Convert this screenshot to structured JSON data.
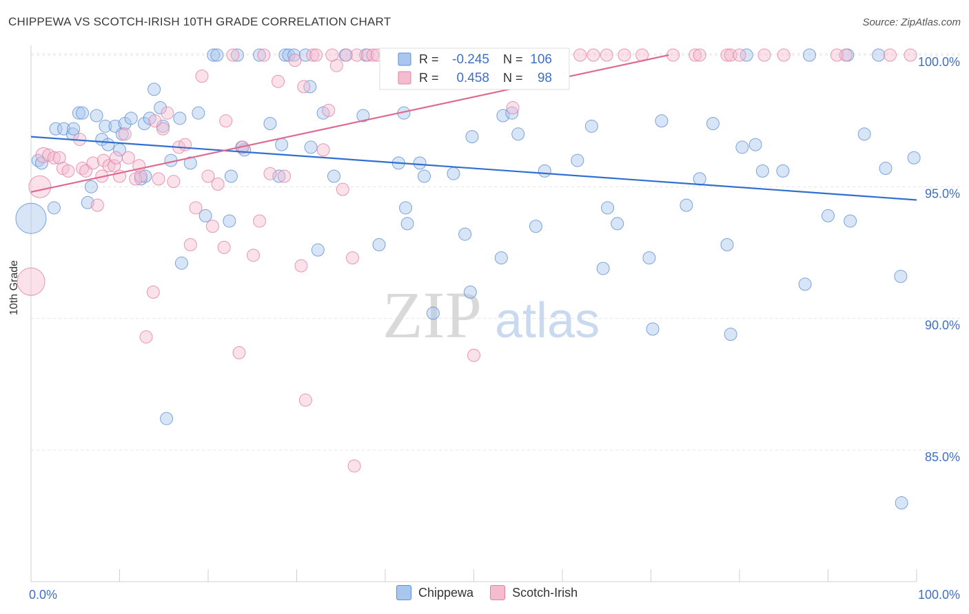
{
  "title": "CHIPPEWA VS SCOTCH-IRISH 10TH GRADE CORRELATION CHART",
  "source": "Source: ZipAtlas.com",
  "watermark": {
    "zip": "ZIP",
    "atlas": "atlas"
  },
  "colors": {
    "blue": "#5b8fd6",
    "blue_line": "#2f6fcf",
    "blue_fill": "#a9c6ee",
    "pink": "#e27fa3",
    "pink_line": "#e0698f",
    "pink_fill": "#f5bcd0",
    "tick_text": "#3f6fc3"
  },
  "stats_box": {
    "rows": [
      {
        "r_label": "R =",
        "r": "-0.245",
        "n_label": "N =",
        "n": "106"
      },
      {
        "r_label": "R =",
        "r": "0.458",
        "n_label": "N =",
        "n": "98"
      }
    ]
  },
  "legend": {
    "items": [
      "Chippewa",
      "Scotch-Irish"
    ]
  },
  "chart_data": {
    "type": "scatter",
    "title": "CHIPPEWA VS SCOTCH-IRISH 10TH GRADE CORRELATION CHART",
    "xlabel": "",
    "ylabel": "10th Grade",
    "xlim": [
      0,
      100
    ],
    "ylim": [
      80.5,
      101
    ],
    "x_tick_labels": [
      "0.0%",
      "100.0%"
    ],
    "y_tick_labels": [
      "85.0%",
      "90.0%",
      "95.0%",
      "100.0%"
    ],
    "y_ticks": [
      85,
      90,
      95,
      100
    ],
    "series": [
      {
        "name": "Chippewa",
        "color": "#5b8fd6",
        "trend": {
          "x": [
            0,
            100
          ],
          "y": [
            96.9,
            94.5
          ]
        },
        "points": [
          [
            0.0,
            93.8,
            22
          ],
          [
            0.8,
            96.0,
            9
          ],
          [
            1.2,
            95.9,
            9
          ],
          [
            2.6,
            94.2,
            9
          ],
          [
            2.8,
            97.2,
            9
          ],
          [
            3.7,
            97.2,
            9
          ],
          [
            4.7,
            97.0,
            9
          ],
          [
            4.8,
            97.2,
            9
          ],
          [
            5.4,
            97.8,
            9
          ],
          [
            5.8,
            97.8,
            9
          ],
          [
            6.4,
            94.4,
            9
          ],
          [
            6.8,
            95.0,
            9
          ],
          [
            7.4,
            97.7,
            9
          ],
          [
            8.0,
            96.8,
            9
          ],
          [
            8.4,
            97.3,
            9
          ],
          [
            8.7,
            96.6,
            9
          ],
          [
            9.5,
            97.3,
            9
          ],
          [
            10.0,
            96.4,
            9
          ],
          [
            10.3,
            97.0,
            9
          ],
          [
            10.6,
            97.4,
            9
          ],
          [
            11.3,
            97.6,
            9
          ],
          [
            12.4,
            95.3,
            9
          ],
          [
            12.8,
            97.4,
            9
          ],
          [
            12.9,
            95.4,
            9
          ],
          [
            13.4,
            97.6,
            9
          ],
          [
            13.9,
            98.7,
            9
          ],
          [
            14.6,
            98.0,
            9
          ],
          [
            14.9,
            97.3,
            9
          ],
          [
            15.3,
            86.2,
            9
          ],
          [
            15.8,
            96.0,
            9
          ],
          [
            16.8,
            97.6,
            9
          ],
          [
            17.0,
            92.1,
            9
          ],
          [
            18.0,
            95.9,
            9
          ],
          [
            18.9,
            97.8,
            9
          ],
          [
            19.7,
            93.9,
            9
          ],
          [
            20.6,
            100.0,
            9
          ],
          [
            21.0,
            100.0,
            9
          ],
          [
            22.4,
            93.7,
            9
          ],
          [
            22.6,
            95.4,
            9
          ],
          [
            23.3,
            100.0,
            9
          ],
          [
            23.8,
            96.5,
            9
          ],
          [
            24.1,
            96.4,
            9
          ],
          [
            25.8,
            100.0,
            9
          ],
          [
            27.0,
            97.4,
            9
          ],
          [
            28.0,
            95.4,
            9
          ],
          [
            28.3,
            96.6,
            9
          ],
          [
            28.7,
            100.0,
            9
          ],
          [
            29.1,
            100.0,
            9
          ],
          [
            29.7,
            100.0,
            9
          ],
          [
            31.0,
            100.0,
            9
          ],
          [
            31.6,
            96.5,
            9
          ],
          [
            31.5,
            98.8,
            9
          ],
          [
            32.4,
            92.6,
            9
          ],
          [
            33.0,
            97.8,
            9
          ],
          [
            34.2,
            95.4,
            9
          ],
          [
            35.5,
            100.0,
            9
          ],
          [
            37.5,
            97.7,
            9
          ],
          [
            37.8,
            100.0,
            9
          ],
          [
            39.3,
            92.8,
            9
          ],
          [
            41.5,
            95.9,
            9
          ],
          [
            42.1,
            97.8,
            9
          ],
          [
            42.3,
            94.2,
            9
          ],
          [
            42.5,
            93.6,
            9
          ],
          [
            43.9,
            95.9,
            9
          ],
          [
            44.4,
            95.4,
            9
          ],
          [
            45.4,
            90.2,
            9
          ],
          [
            47.7,
            95.5,
            9
          ],
          [
            49.0,
            93.2,
            9
          ],
          [
            49.6,
            91.0,
            9
          ],
          [
            49.8,
            96.9,
            9
          ],
          [
            53.1,
            92.3,
            9
          ],
          [
            53.3,
            97.7,
            9
          ],
          [
            54.3,
            97.8,
            9
          ],
          [
            55.0,
            97.0,
            9
          ],
          [
            55.0,
            100.0,
            9
          ],
          [
            57.0,
            93.5,
            9
          ],
          [
            58.0,
            95.6,
            9
          ],
          [
            61.7,
            96.0,
            9
          ],
          [
            63.3,
            97.3,
            9
          ],
          [
            64.6,
            91.9,
            9
          ],
          [
            65.1,
            94.2,
            9
          ],
          [
            66.2,
            93.6,
            9
          ],
          [
            69.8,
            92.3,
            9
          ],
          [
            70.2,
            89.6,
            9
          ],
          [
            71.2,
            97.5,
            9
          ],
          [
            74.0,
            94.3,
            9
          ],
          [
            75.5,
            95.3,
            9
          ],
          [
            77.0,
            97.4,
            9
          ],
          [
            78.6,
            92.8,
            9
          ],
          [
            79.0,
            89.4,
            9
          ],
          [
            80.3,
            96.5,
            9
          ],
          [
            80.8,
            100.0,
            9
          ],
          [
            81.8,
            96.6,
            9
          ],
          [
            82.6,
            95.6,
            9
          ],
          [
            84.9,
            95.6,
            9
          ],
          [
            87.9,
            100.0,
            9
          ],
          [
            87.4,
            91.3,
            9
          ],
          [
            90.0,
            93.9,
            9
          ],
          [
            92.2,
            100.0,
            9
          ],
          [
            92.5,
            93.7,
            9
          ],
          [
            94.1,
            97.0,
            9
          ],
          [
            95.7,
            100.0,
            9
          ],
          [
            96.5,
            95.7,
            9
          ],
          [
            98.2,
            91.6,
            9
          ],
          [
            98.3,
            83.0,
            9
          ],
          [
            99.7,
            96.1,
            9
          ]
        ]
      },
      {
        "name": "Scotch-Irish",
        "color": "#e27fa3",
        "trend": {
          "x": [
            0,
            72
          ],
          "y": [
            94.8,
            100.0
          ]
        },
        "points": [
          [
            0.0,
            91.4,
            20
          ],
          [
            1.0,
            95.0,
            16
          ],
          [
            1.4,
            96.2,
            11
          ],
          [
            2.0,
            96.2,
            9
          ],
          [
            2.6,
            96.1,
            9
          ],
          [
            3.2,
            96.1,
            9
          ],
          [
            3.6,
            95.7,
            9
          ],
          [
            4.2,
            95.6,
            9
          ],
          [
            5.5,
            96.8,
            9
          ],
          [
            5.8,
            95.7,
            9
          ],
          [
            6.2,
            95.6,
            9
          ],
          [
            7.0,
            95.9,
            9
          ],
          [
            7.5,
            94.3,
            9
          ],
          [
            8.0,
            95.4,
            9
          ],
          [
            8.2,
            96.0,
            9
          ],
          [
            8.8,
            95.8,
            9
          ],
          [
            9.4,
            95.8,
            9
          ],
          [
            9.6,
            96.1,
            9
          ],
          [
            10.0,
            95.4,
            9
          ],
          [
            10.6,
            97.0,
            9
          ],
          [
            11.0,
            96.1,
            9
          ],
          [
            11.8,
            95.3,
            9
          ],
          [
            12.4,
            95.4,
            9
          ],
          [
            13.0,
            89.3,
            9
          ],
          [
            13.8,
            91.0,
            9
          ],
          [
            14.4,
            95.3,
            9
          ],
          [
            14.9,
            97.2,
            9
          ],
          [
            15.4,
            97.8,
            9
          ],
          [
            16.1,
            95.2,
            9
          ],
          [
            16.7,
            96.5,
            9
          ],
          [
            17.4,
            96.6,
            9
          ],
          [
            18.0,
            92.8,
            9
          ],
          [
            18.6,
            94.2,
            9
          ],
          [
            19.3,
            99.2,
            9
          ],
          [
            20.0,
            95.4,
            9
          ],
          [
            20.5,
            93.5,
            9
          ],
          [
            21.1,
            95.1,
            9
          ],
          [
            21.8,
            92.7,
            9
          ],
          [
            22.0,
            97.5,
            9
          ],
          [
            22.8,
            100.0,
            9
          ],
          [
            23.5,
            88.7,
            9
          ],
          [
            23.9,
            96.5,
            9
          ],
          [
            25.1,
            92.4,
            9
          ],
          [
            25.8,
            93.7,
            9
          ],
          [
            26.3,
            100.0,
            9
          ],
          [
            27.0,
            95.5,
            9
          ],
          [
            27.9,
            99.0,
            9
          ],
          [
            28.6,
            95.4,
            9
          ],
          [
            29.8,
            99.8,
            9
          ],
          [
            30.5,
            92.0,
            9
          ],
          [
            30.8,
            98.8,
            9
          ],
          [
            31.0,
            86.9,
            9
          ],
          [
            31.8,
            100.0,
            9
          ],
          [
            32.2,
            100.0,
            9
          ],
          [
            33.0,
            96.4,
            9
          ],
          [
            33.6,
            97.9,
            9
          ],
          [
            34.0,
            100.0,
            9
          ],
          [
            34.5,
            99.6,
            9
          ],
          [
            35.2,
            94.9,
            9
          ],
          [
            35.6,
            100.0,
            9
          ],
          [
            36.3,
            92.3,
            9
          ],
          [
            36.5,
            84.4,
            9
          ],
          [
            36.8,
            100.0,
            9
          ],
          [
            38.0,
            100.0,
            9
          ],
          [
            38.6,
            100.0,
            9
          ],
          [
            39.1,
            100.0,
            9
          ],
          [
            40.7,
            100.0,
            9
          ],
          [
            42.0,
            100.0,
            9
          ],
          [
            42.4,
            100.0,
            9
          ],
          [
            43.0,
            100.0,
            9
          ],
          [
            47.0,
            100.0,
            9
          ],
          [
            50.0,
            88.6,
            9
          ],
          [
            50.8,
            100.0,
            9
          ],
          [
            53.0,
            100.0,
            9
          ],
          [
            54.4,
            98.0,
            9
          ],
          [
            55.2,
            100.0,
            9
          ],
          [
            57.0,
            100.0,
            9
          ],
          [
            58.6,
            100.0,
            9
          ],
          [
            59.0,
            100.0,
            9
          ],
          [
            62.0,
            100.0,
            9
          ],
          [
            63.5,
            100.0,
            9
          ],
          [
            65.0,
            100.0,
            9
          ],
          [
            67.0,
            100.0,
            9
          ],
          [
            69.0,
            100.0,
            9
          ],
          [
            72.5,
            100.0,
            9
          ],
          [
            75.0,
            100.0,
            9
          ],
          [
            75.5,
            100.0,
            9
          ],
          [
            78.6,
            100.0,
            9
          ],
          [
            79.0,
            100.0,
            9
          ],
          [
            80.0,
            100.0,
            9
          ],
          [
            82.8,
            100.0,
            9
          ],
          [
            85.0,
            100.0,
            9
          ],
          [
            91.0,
            100.0,
            9
          ],
          [
            92.0,
            100.0,
            9
          ],
          [
            97.0,
            100.0,
            9
          ],
          [
            99.3,
            100.0,
            9
          ],
          [
            12.2,
            95.8,
            9
          ],
          [
            14.0,
            97.5,
            9
          ]
        ]
      }
    ]
  }
}
